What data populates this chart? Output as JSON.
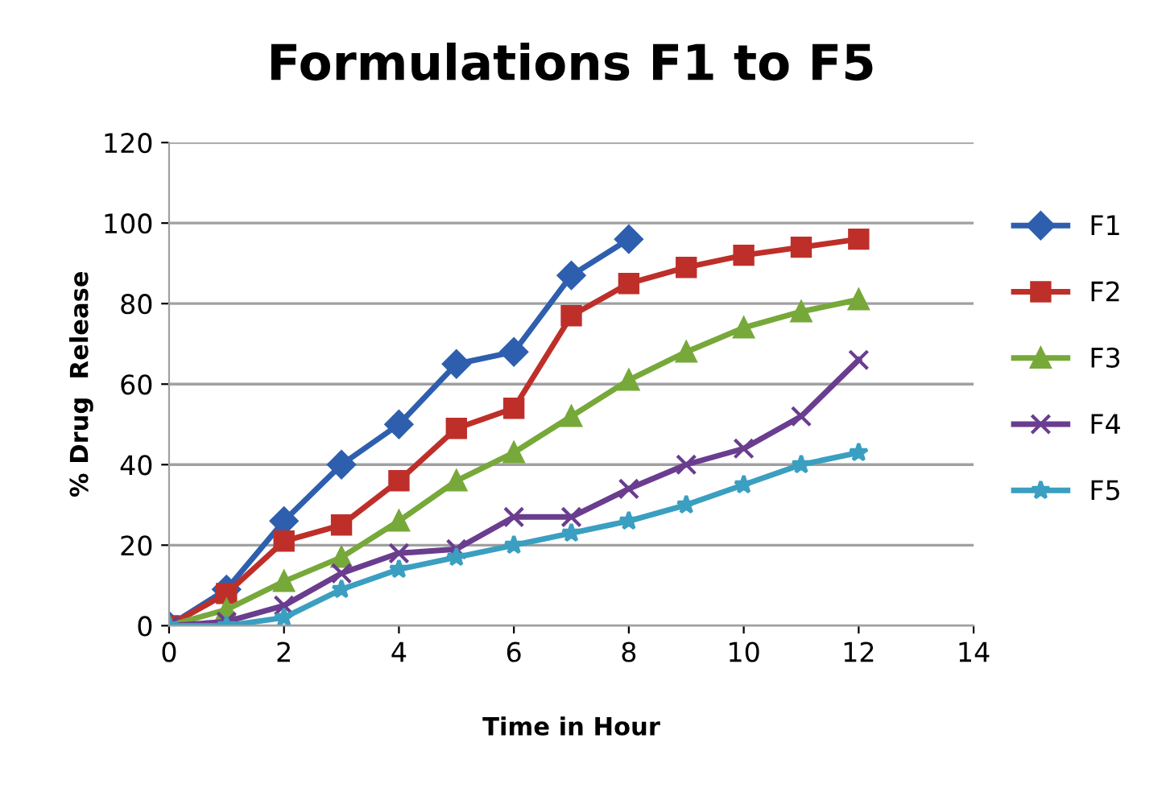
{
  "chart_data": {
    "type": "line",
    "title": "Formulations F1 to F5",
    "xlabel": "Time in Hour",
    "ylabel": "% Drug  Release",
    "x": [
      0,
      1,
      2,
      3,
      4,
      5,
      6,
      7,
      8,
      9,
      10,
      11,
      12
    ],
    "series": [
      {
        "name": "F1",
        "color": "#2e5fae",
        "marker": "diamond",
        "values": [
          0,
          9,
          26,
          40,
          50,
          65,
          68,
          87,
          96,
          null,
          null,
          null,
          null
        ]
      },
      {
        "name": "F2",
        "color": "#be2f2a",
        "marker": "square",
        "values": [
          0,
          8,
          21,
          25,
          36,
          49,
          54,
          77,
          85,
          89,
          92,
          94,
          96
        ]
      },
      {
        "name": "F3",
        "color": "#77a83a",
        "marker": "triangle",
        "values": [
          0,
          4,
          11,
          17,
          26,
          36,
          43,
          52,
          61,
          68,
          74,
          78,
          81
        ]
      },
      {
        "name": "F4",
        "color": "#6a3d8f",
        "marker": "cross",
        "values": [
          0,
          1,
          5,
          13,
          18,
          19,
          27,
          27,
          34,
          40,
          44,
          52,
          66
        ]
      },
      {
        "name": "F5",
        "color": "#3a9fc0",
        "marker": "star",
        "values": [
          0,
          0,
          2,
          9,
          14,
          17,
          20,
          23,
          26,
          30,
          35,
          40,
          43
        ]
      }
    ],
    "xlim": [
      0,
      14
    ],
    "xticks": [
      0,
      2,
      4,
      6,
      8,
      10,
      12,
      14
    ],
    "ylim": [
      0,
      120
    ],
    "yticks": [
      0,
      20,
      40,
      60,
      80,
      100,
      120
    ],
    "grid": "y",
    "legend": "right",
    "line_style": "solid"
  }
}
